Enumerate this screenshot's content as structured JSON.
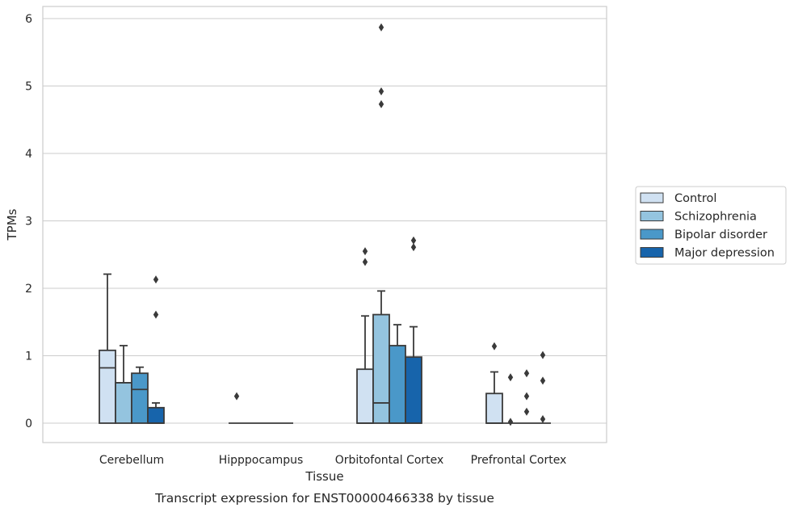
{
  "chart_data": {
    "type": "box",
    "caption": "Transcript expression for ENST00000466338 by tissue",
    "xlabel": "Tissue",
    "ylabel": "TPMs",
    "ylim": [
      -0.28,
      6.18
    ],
    "yticks": [
      "0",
      "1",
      "2",
      "3",
      "4",
      "5",
      "6"
    ],
    "grid": true,
    "legend_position": "right",
    "categories": [
      "Cerebellum",
      "Hipppocampus",
      "Orbitofontal Cortex",
      "Prefrontal Cortex"
    ],
    "series": [
      {
        "name": "Control",
        "color": "#d0e1f2",
        "boxes": [
          {
            "q1": 0,
            "median": 0.82,
            "q3": 1.08,
            "whisker_low": 0,
            "whisker_high": 2.21,
            "outliers": []
          },
          {
            "q1": 0,
            "median": 0,
            "q3": 0,
            "whisker_low": 0,
            "whisker_high": 0,
            "outliers": [
              0.4
            ]
          },
          {
            "q1": 0,
            "median": 0,
            "q3": 0.8,
            "whisker_low": 0,
            "whisker_high": 1.59,
            "outliers": [
              2.39,
              2.55
            ]
          },
          {
            "q1": 0,
            "median": 0,
            "q3": 0.44,
            "whisker_low": 0,
            "whisker_high": 0.76,
            "outliers": [
              1.14
            ]
          }
        ]
      },
      {
        "name": "Schizophrenia",
        "color": "#94c4df",
        "boxes": [
          {
            "q1": 0,
            "median": 0.6,
            "q3": 0.6,
            "whisker_low": 0,
            "whisker_high": 1.15,
            "outliers": []
          },
          {
            "q1": 0,
            "median": 0,
            "q3": 0,
            "whisker_low": 0,
            "whisker_high": 0,
            "outliers": []
          },
          {
            "q1": 0,
            "median": 0.3,
            "q3": 1.61,
            "whisker_low": 0,
            "whisker_high": 1.96,
            "outliers": [
              4.73,
              4.92,
              5.87
            ]
          },
          {
            "q1": 0,
            "median": 0,
            "q3": 0,
            "whisker_low": 0,
            "whisker_high": 0,
            "outliers": [
              0.02,
              0.68
            ]
          }
        ]
      },
      {
        "name": "Bipolar disorder",
        "color": "#4a98c9",
        "boxes": [
          {
            "q1": 0,
            "median": 0.5,
            "q3": 0.74,
            "whisker_low": 0,
            "whisker_high": 0.83,
            "outliers": []
          },
          {
            "q1": 0,
            "median": 0,
            "q3": 0,
            "whisker_low": 0,
            "whisker_high": 0,
            "outliers": []
          },
          {
            "q1": 0,
            "median": 0,
            "q3": 1.15,
            "whisker_low": 0,
            "whisker_high": 1.46,
            "outliers": []
          },
          {
            "q1": 0,
            "median": 0,
            "q3": 0,
            "whisker_low": 0,
            "whisker_high": 0,
            "outliers": [
              0.17,
              0.4,
              0.74
            ]
          }
        ]
      },
      {
        "name": "Major depression",
        "color": "#1764ab",
        "boxes": [
          {
            "q1": 0,
            "median": 0,
            "q3": 0.23,
            "whisker_low": 0,
            "whisker_high": 0.3,
            "outliers": [
              1.61,
              2.13
            ]
          },
          {
            "q1": 0,
            "median": 0,
            "q3": 0,
            "whisker_low": 0,
            "whisker_high": 0,
            "outliers": []
          },
          {
            "q1": 0,
            "median": 0,
            "q3": 0.98,
            "whisker_low": 0,
            "whisker_high": 1.43,
            "outliers": [
              2.61,
              2.71
            ]
          },
          {
            "q1": 0,
            "median": 0,
            "q3": 0,
            "whisker_low": 0,
            "whisker_high": 0,
            "outliers": [
              0.06,
              0.63,
              1.01
            ]
          }
        ]
      }
    ]
  }
}
